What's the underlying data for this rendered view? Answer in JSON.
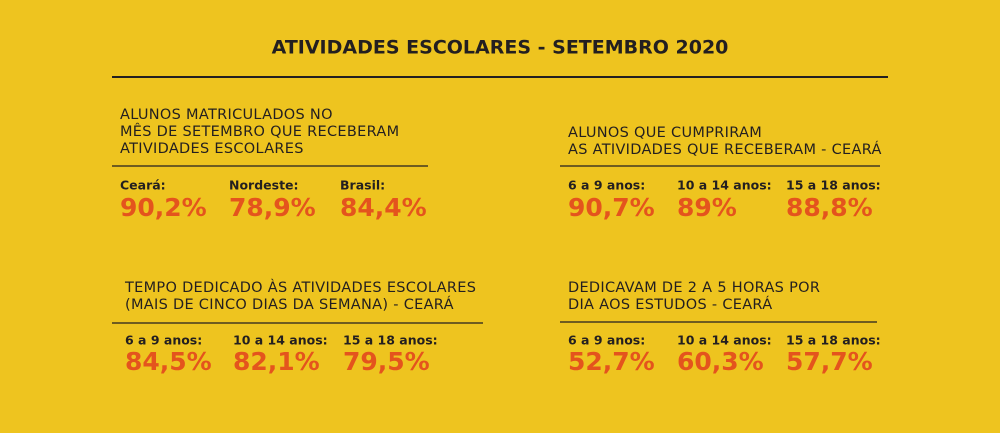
{
  "title": "ATIVIDADES ESCOLARES - SETEMBRO 2020",
  "panels": [
    {
      "heading": [
        "ALUNOS MATRICULADOS NO",
        "MÊS DE SETEMBRO QUE RECEBERAM",
        "ATIVIDADES ESCOLARES"
      ],
      "stats": [
        {
          "label": "Ceará:",
          "value": "90,2%"
        },
        {
          "label": "Nordeste:",
          "value": "78,9%"
        },
        {
          "label": "Brasil:",
          "value": "84,4%"
        }
      ]
    },
    {
      "heading": [
        "ALUNOS QUE CUMPRIRAM",
        "AS ATIVIDADES QUE RECEBERAM - CEARÁ"
      ],
      "stats": [
        {
          "label": "6 a 9 anos:",
          "value": "90,7%"
        },
        {
          "label": "10 a 14 anos:",
          "value": "89%"
        },
        {
          "label": "15 a 18 anos:",
          "value": "88,8%"
        }
      ]
    },
    {
      "heading": [
        "TEMPO DEDICADO ÀS ATIVIDADES ESCOLARES",
        "(MAIS DE CINCO DIAS DA SEMANA) - CEARÁ"
      ],
      "stats": [
        {
          "label": "6 a 9 anos:",
          "value": "84,5%"
        },
        {
          "label": "10 a 14 anos:",
          "value": "82,1%"
        },
        {
          "label": "15 a 18 anos:",
          "value": "79,5%"
        }
      ]
    },
    {
      "heading": [
        "DEDICAVAM DE 2 A 5 HORAS POR",
        "DIA AOS ESTUDOS - CEARÁ"
      ],
      "stats": [
        {
          "label": "6 a 9 anos:",
          "value": "52,7%"
        },
        {
          "label": "10 a 14 anos:",
          "value": "60,3%"
        },
        {
          "label": "15 a 18 anos:",
          "value": "57,7%"
        }
      ]
    }
  ]
}
